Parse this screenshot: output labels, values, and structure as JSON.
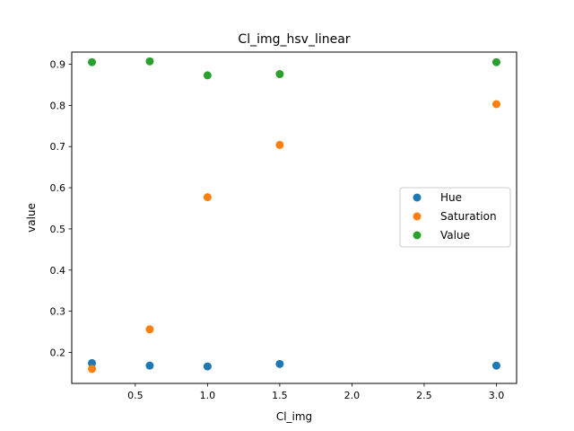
{
  "chart_data": {
    "type": "scatter",
    "title": "Cl_img_hsv_linear",
    "xlabel": "Cl_img",
    "ylabel": "value",
    "xlim": [
      0.06,
      3.14
    ],
    "ylim": [
      0.1247,
      0.9295
    ],
    "xticks": [
      0.5,
      1.0,
      1.5,
      2.0,
      2.5,
      3.0
    ],
    "xtick_labels": [
      "0.5",
      "1.0",
      "1.5",
      "2.0",
      "2.5",
      "3.0"
    ],
    "yticks": [
      0.2,
      0.3,
      0.4,
      0.5,
      0.6,
      0.7,
      0.8,
      0.9
    ],
    "ytick_labels": [
      "0.2",
      "0.3",
      "0.4",
      "0.5",
      "0.6",
      "0.7",
      "0.8",
      "0.9"
    ],
    "grid": false,
    "legend_position": "center-right",
    "series": [
      {
        "name": "Hue",
        "color": "#1f77b4",
        "x": [
          0.2,
          0.6,
          1.0,
          1.5,
          3.0
        ],
        "y": [
          0.174,
          0.168,
          0.166,
          0.172,
          0.168
        ]
      },
      {
        "name": "Saturation",
        "color": "#ff7f0e",
        "x": [
          0.2,
          0.6,
          1.0,
          1.5,
          3.0
        ],
        "y": [
          0.16,
          0.256,
          0.577,
          0.704,
          0.803
        ]
      },
      {
        "name": "Value",
        "color": "#2ca02c",
        "x": [
          0.2,
          0.6,
          1.0,
          1.5,
          3.0
        ],
        "y": [
          0.905,
          0.907,
          0.873,
          0.876,
          0.905
        ]
      }
    ]
  }
}
